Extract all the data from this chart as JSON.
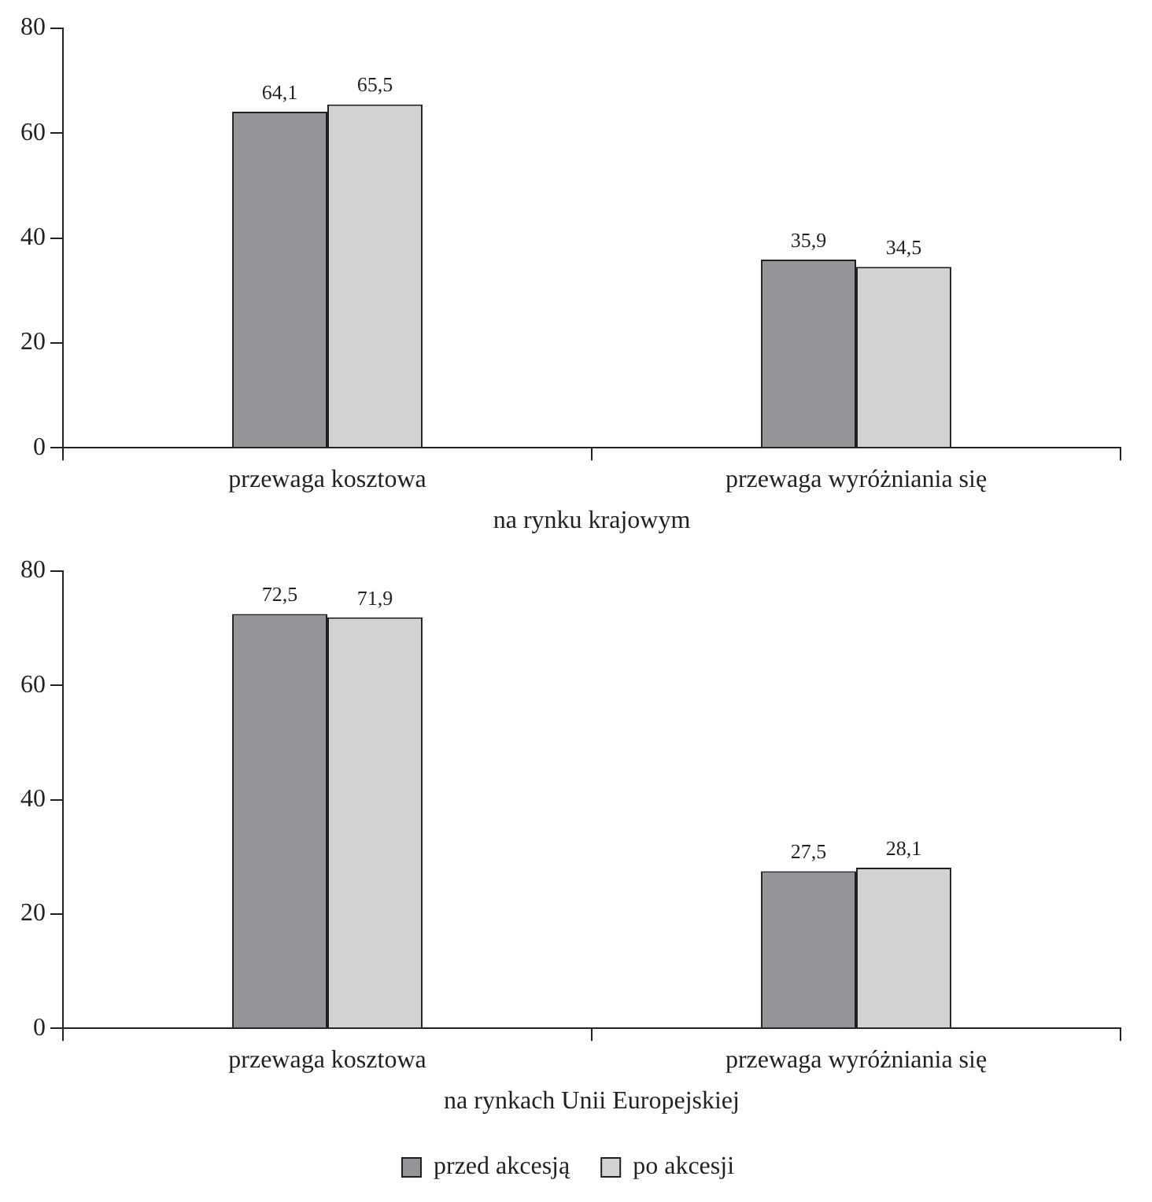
{
  "chart_data": [
    {
      "type": "bar",
      "xlabel": "na rynku krajowym",
      "categories": [
        "przewaga kosztowa",
        "przewaga wyróżniania się"
      ],
      "series": [
        {
          "color": "#939598",
          "values": [
            64.1,
            35.9
          ],
          "value_labels": [
            "64,1",
            "35,9"
          ]
        },
        {
          "color": "#d1d3d4",
          "values": [
            65.5,
            34.5
          ],
          "value_labels": [
            "65,5",
            "34,5"
          ]
        }
      ],
      "ylim": [
        0,
        80
      ],
      "yticks": [
        0,
        20,
        40,
        60,
        80
      ],
      "grid": false,
      "legend": false
    },
    {
      "type": "bar",
      "xlabel": "na rynkach Unii Europejskiej",
      "categories": [
        "przewaga kosztowa",
        "przewaga wyróżniania się"
      ],
      "series": [
        {
          "name": "przed akcesją",
          "color": "#939598",
          "values": [
            72.5,
            27.5
          ],
          "value_labels": [
            "72,5",
            "27,5"
          ]
        },
        {
          "name": "po akcesji",
          "color": "#d1d3d4",
          "values": [
            71.9,
            28.1
          ],
          "value_labels": [
            "71,9",
            "28,1"
          ]
        }
      ],
      "ylim": [
        0,
        80
      ],
      "yticks": [
        0,
        20,
        40,
        60,
        80
      ],
      "grid": false,
      "legend": "bottom"
    }
  ]
}
